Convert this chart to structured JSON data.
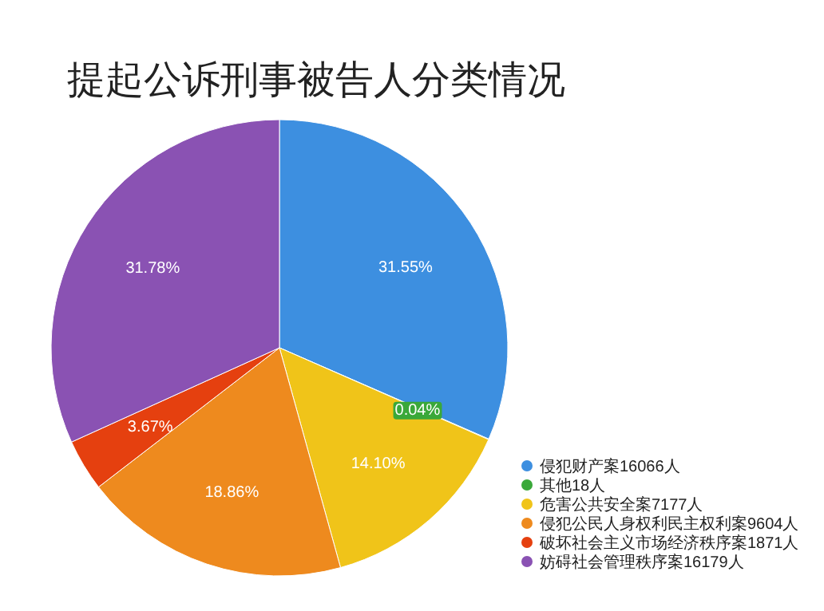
{
  "chart_data": {
    "type": "pie",
    "title": "提起公诉刑事被告人分类情况",
    "categories": [
      "侵犯财产案16066人",
      "其他18人",
      "危害公共安全案7177人",
      "侵犯公民人身权利民主权利案9604人",
      "破坏社会主义市场经济秩序案1871人",
      "妨碍社会管理秩序案16179人"
    ],
    "values": [
      31.55,
      0.04,
      14.1,
      18.86,
      3.67,
      31.78
    ],
    "value_labels": [
      "31.55%",
      "0.04%",
      "14.10%",
      "18.86%",
      "3.67%",
      "31.78%"
    ],
    "colors": [
      "#3d8fe0",
      "#3aa83a",
      "#f0c419",
      "#ee8a1e",
      "#e5400f",
      "#8a52b3"
    ],
    "legend": "bottom right"
  }
}
